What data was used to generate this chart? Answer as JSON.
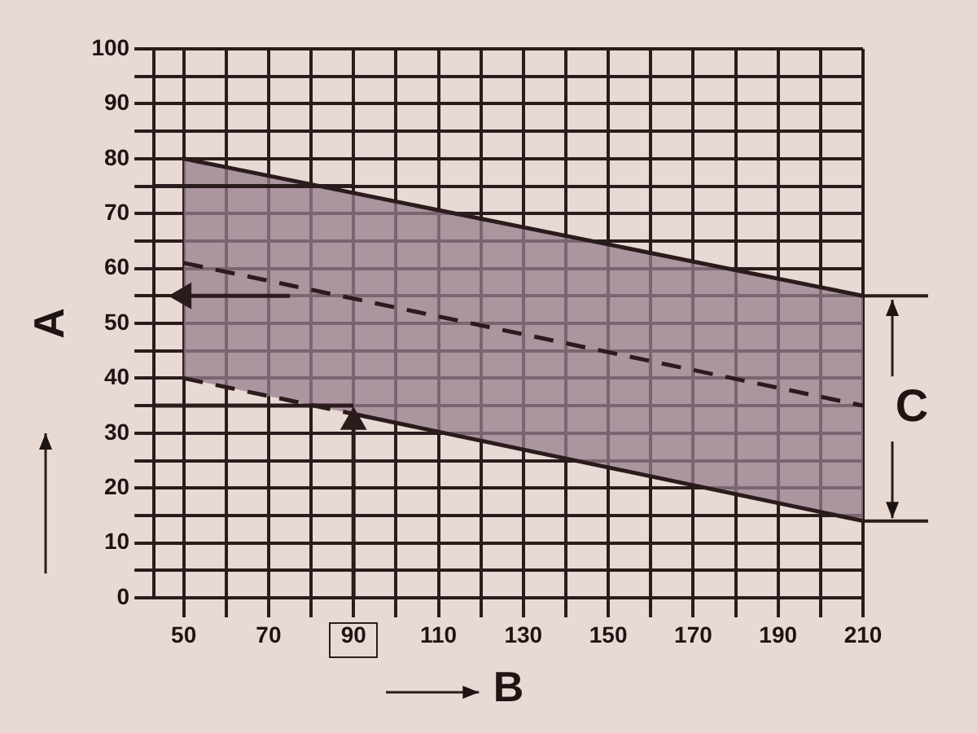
{
  "chart_data": {
    "type": "line",
    "xlabel": "B",
    "ylabel": "A",
    "annotations": [
      {
        "text": "C",
        "x": 210,
        "y": 34.5
      }
    ],
    "xlim": [
      43,
      210
    ],
    "xticks": [
      50,
      {
        "value": 60,
        "label": null
      },
      70,
      {
        "value": 80,
        "label": null
      },
      90,
      {
        "value": 100,
        "label": null
      },
      110,
      {
        "value": 120,
        "label": null
      },
      130,
      {
        "value": 140,
        "label": null
      },
      150,
      {
        "value": 160,
        "label": null
      },
      170,
      {
        "value": 180,
        "label": null
      },
      190,
      {
        "value": 200,
        "label": null
      },
      210
    ],
    "ylim": [
      0,
      100
    ],
    "yticks": [
      0,
      {
        "value": 5,
        "label": null
      },
      10,
      {
        "value": 15,
        "label": null
      },
      20,
      {
        "value": 25,
        "label": null
      },
      30,
      {
        "value": 35,
        "label": null
      },
      40,
      {
        "value": 45,
        "label": null
      },
      50,
      {
        "value": 55,
        "label": null
      },
      60,
      {
        "value": 65,
        "label": null
      },
      70,
      {
        "value": 75,
        "label": null
      },
      80,
      {
        "value": 85,
        "label": null
      },
      90,
      {
        "value": 95,
        "label": null
      },
      100
    ],
    "grid": true,
    "legend": false,
    "series": [
      {
        "color": "#2a1c1c",
        "x": [
          50,
          90,
          210
        ],
        "values": [
          61,
          54.5,
          35
        ],
        "lower": [
          40,
          33.5,
          14
        ],
        "upper": [
          80,
          73.75,
          55
        ],
        "line_style": "dashed",
        "marker": "none"
      },
      {
        "color": "#2a1c1c",
        "x": [
          50,
          210
        ],
        "values": [
          80,
          55
        ],
        "line_style": "solid",
        "marker": "none"
      },
      {
        "color": "#2a1c1c",
        "x": [
          50,
          90
        ],
        "values": [
          40,
          33.5
        ],
        "line_style": "dashed",
        "marker": "none"
      },
      {
        "color": "#2a1c1c",
        "x": [
          90,
          210
        ],
        "values": [
          33.5,
          14
        ],
        "line_style": "solid",
        "marker": "none"
      },
      {
        "color": "#2a1c1c",
        "x": [
          43,
          90
        ],
        "values": [
          75,
          75
        ],
        "line_style": "solid",
        "marker": "none"
      },
      {
        "color": "#2a1c1c",
        "x": [
          43,
          90
        ],
        "values": [
          35,
          35
        ],
        "line_style": "solid",
        "marker": "none"
      },
      {
        "color": "#2a1c1c",
        "x": [
          90,
          90
        ],
        "values": [
          0,
          32
        ],
        "line_style": "solid",
        "marker": "triangle"
      },
      {
        "color": "#2a1c1c",
        "x": [
          75,
          50
        ],
        "values": [
          55,
          55
        ],
        "line_style": "solid",
        "marker": "triangle"
      }
    ]
  }
}
